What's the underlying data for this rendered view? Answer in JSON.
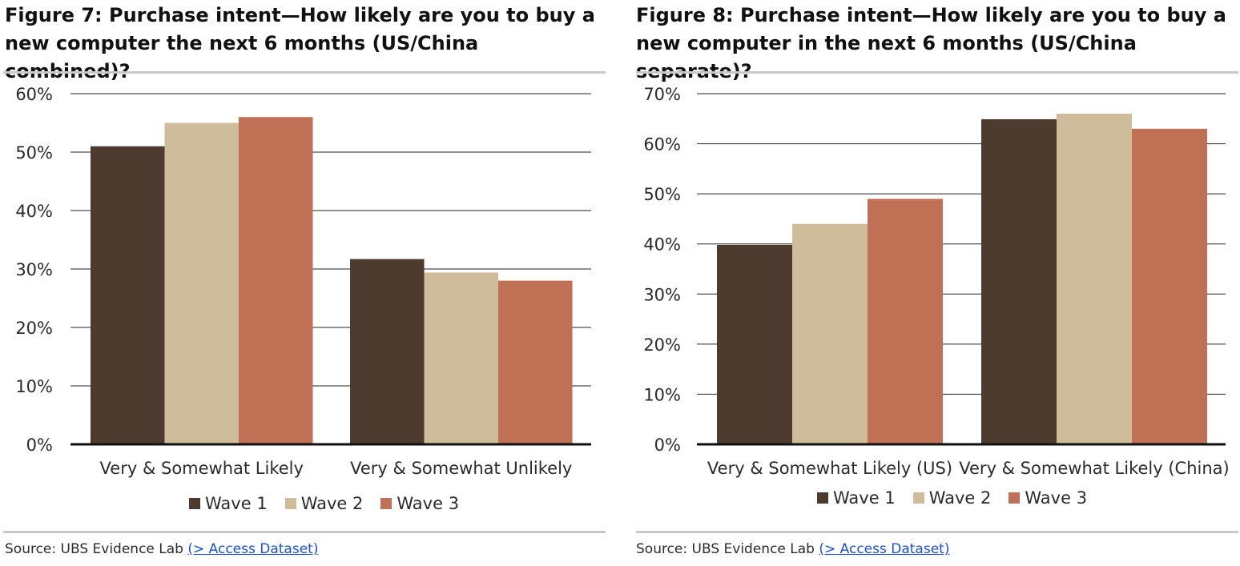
{
  "colors": {
    "wave1": "#4e3b30",
    "wave2": "#cfbc9b",
    "wave3": "#c07055",
    "grid": "#222222",
    "rule": "#c9c9c9",
    "link": "#1a4fd6"
  },
  "figures": [
    {
      "title": "Figure 7: Purchase intent—How likely are you to buy a new computer the next 6 months (US/China combined)?",
      "source_label": "Source:  UBS Evidence Lab ",
      "source_link": "(> Access Dataset)"
    },
    {
      "title": "Figure 8: Purchase intent—How likely are you to buy a new computer in the next 6 months (US/China separate)?",
      "source_label": "Source:  UBS Evidence Lab ",
      "source_link": "(> Access Dataset)"
    }
  ],
  "chart_data": [
    {
      "type": "bar",
      "categories": [
        "Very & Somewhat Likely",
        "Very & Somewhat Unlikely"
      ],
      "series": [
        {
          "name": "Wave 1",
          "values": [
            51,
            31.7
          ]
        },
        {
          "name": "Wave 2",
          "values": [
            55,
            29.4
          ]
        },
        {
          "name": "Wave 3",
          "values": [
            56,
            28
          ]
        }
      ],
      "ylim": [
        0,
        60
      ],
      "yticks": [
        "0%",
        "10%",
        "20%",
        "30%",
        "40%",
        "50%",
        "60%"
      ],
      "grid": true,
      "legend": "bottom"
    },
    {
      "type": "bar",
      "categories": [
        "Very & Somewhat Likely (US)",
        "Very & Somewhat Likely (China)"
      ],
      "series": [
        {
          "name": "Wave 1",
          "values": [
            39.8,
            64.9
          ]
        },
        {
          "name": "Wave 2",
          "values": [
            44,
            66
          ]
        },
        {
          "name": "Wave 3",
          "values": [
            49,
            63
          ]
        }
      ],
      "ylim": [
        0,
        70
      ],
      "yticks": [
        "0%",
        "10%",
        "20%",
        "30%",
        "40%",
        "50%",
        "60%",
        "70%"
      ],
      "grid": true,
      "legend": "bottom"
    }
  ]
}
